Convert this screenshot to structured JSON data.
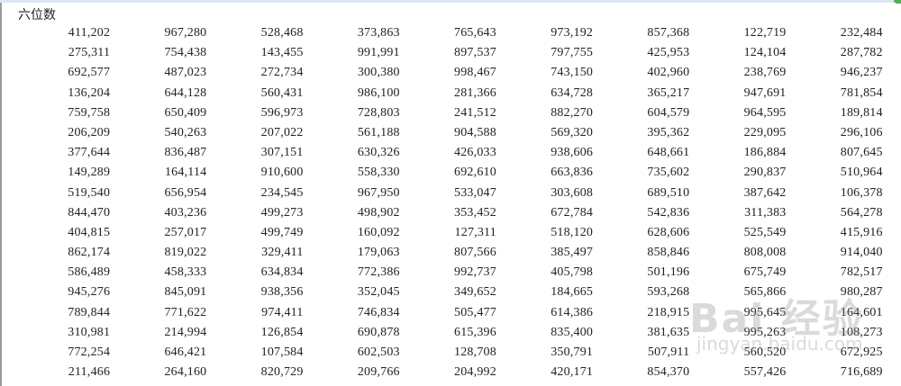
{
  "title": "六位数",
  "rows": [
    [
      "411,202",
      "967,280",
      "528,468",
      "373,863",
      "765,643",
      "973,192",
      "857,368",
      "122,719",
      "232,484"
    ],
    [
      "275,311",
      "754,438",
      "143,455",
      "991,991",
      "897,537",
      "797,755",
      "425,953",
      "124,104",
      "287,782"
    ],
    [
      "692,577",
      "487,023",
      "272,734",
      "300,380",
      "998,467",
      "743,150",
      "402,960",
      "238,769",
      "946,237"
    ],
    [
      "136,204",
      "644,128",
      "560,431",
      "986,100",
      "281,366",
      "634,728",
      "365,217",
      "947,691",
      "781,854"
    ],
    [
      "759,758",
      "650,409",
      "596,973",
      "728,803",
      "241,512",
      "882,270",
      "604,579",
      "964,595",
      "189,814"
    ],
    [
      "206,209",
      "540,263",
      "207,022",
      "561,188",
      "904,588",
      "569,320",
      "395,362",
      "229,095",
      "296,106"
    ],
    [
      "377,644",
      "836,487",
      "307,151",
      "630,326",
      "426,033",
      "938,606",
      "648,661",
      "186,884",
      "807,645"
    ],
    [
      "149,289",
      "164,114",
      "910,600",
      "558,330",
      "692,610",
      "663,836",
      "735,602",
      "290,837",
      "510,964"
    ],
    [
      "519,540",
      "656,954",
      "234,545",
      "967,950",
      "533,047",
      "303,608",
      "689,510",
      "387,642",
      "106,378"
    ],
    [
      "844,470",
      "403,236",
      "499,273",
      "498,902",
      "353,452",
      "672,784",
      "542,836",
      "311,383",
      "564,278"
    ],
    [
      "404,815",
      "257,017",
      "499,749",
      "160,092",
      "127,311",
      "518,120",
      "628,606",
      "525,549",
      "415,916"
    ],
    [
      "862,174",
      "819,022",
      "329,411",
      "179,063",
      "807,566",
      "385,497",
      "858,846",
      "808,008",
      "914,040"
    ],
    [
      "586,489",
      "458,333",
      "634,834",
      "772,386",
      "992,737",
      "405,798",
      "501,196",
      "675,749",
      "782,517"
    ],
    [
      "945,276",
      "845,091",
      "938,356",
      "352,045",
      "349,652",
      "184,665",
      "593,268",
      "565,866",
      "980,287"
    ],
    [
      "789,844",
      "771,622",
      "974,411",
      "746,834",
      "505,477",
      "614,386",
      "218,915",
      "995,645",
      "164,601"
    ],
    [
      "310,981",
      "214,994",
      "126,854",
      "690,878",
      "615,396",
      "835,400",
      "381,635",
      "995,263",
      "108,273"
    ],
    [
      "772,254",
      "646,421",
      "107,584",
      "602,503",
      "128,708",
      "350,791",
      "507,911",
      "560,520",
      "672,925"
    ],
    [
      "211,466",
      "264,160",
      "820,729",
      "209,766",
      "204,992",
      "420,171",
      "854,370",
      "557,426",
      "716,689"
    ]
  ],
  "watermark": {
    "logo": "Bai 经验",
    "url": "jingyan.baidu.com"
  }
}
